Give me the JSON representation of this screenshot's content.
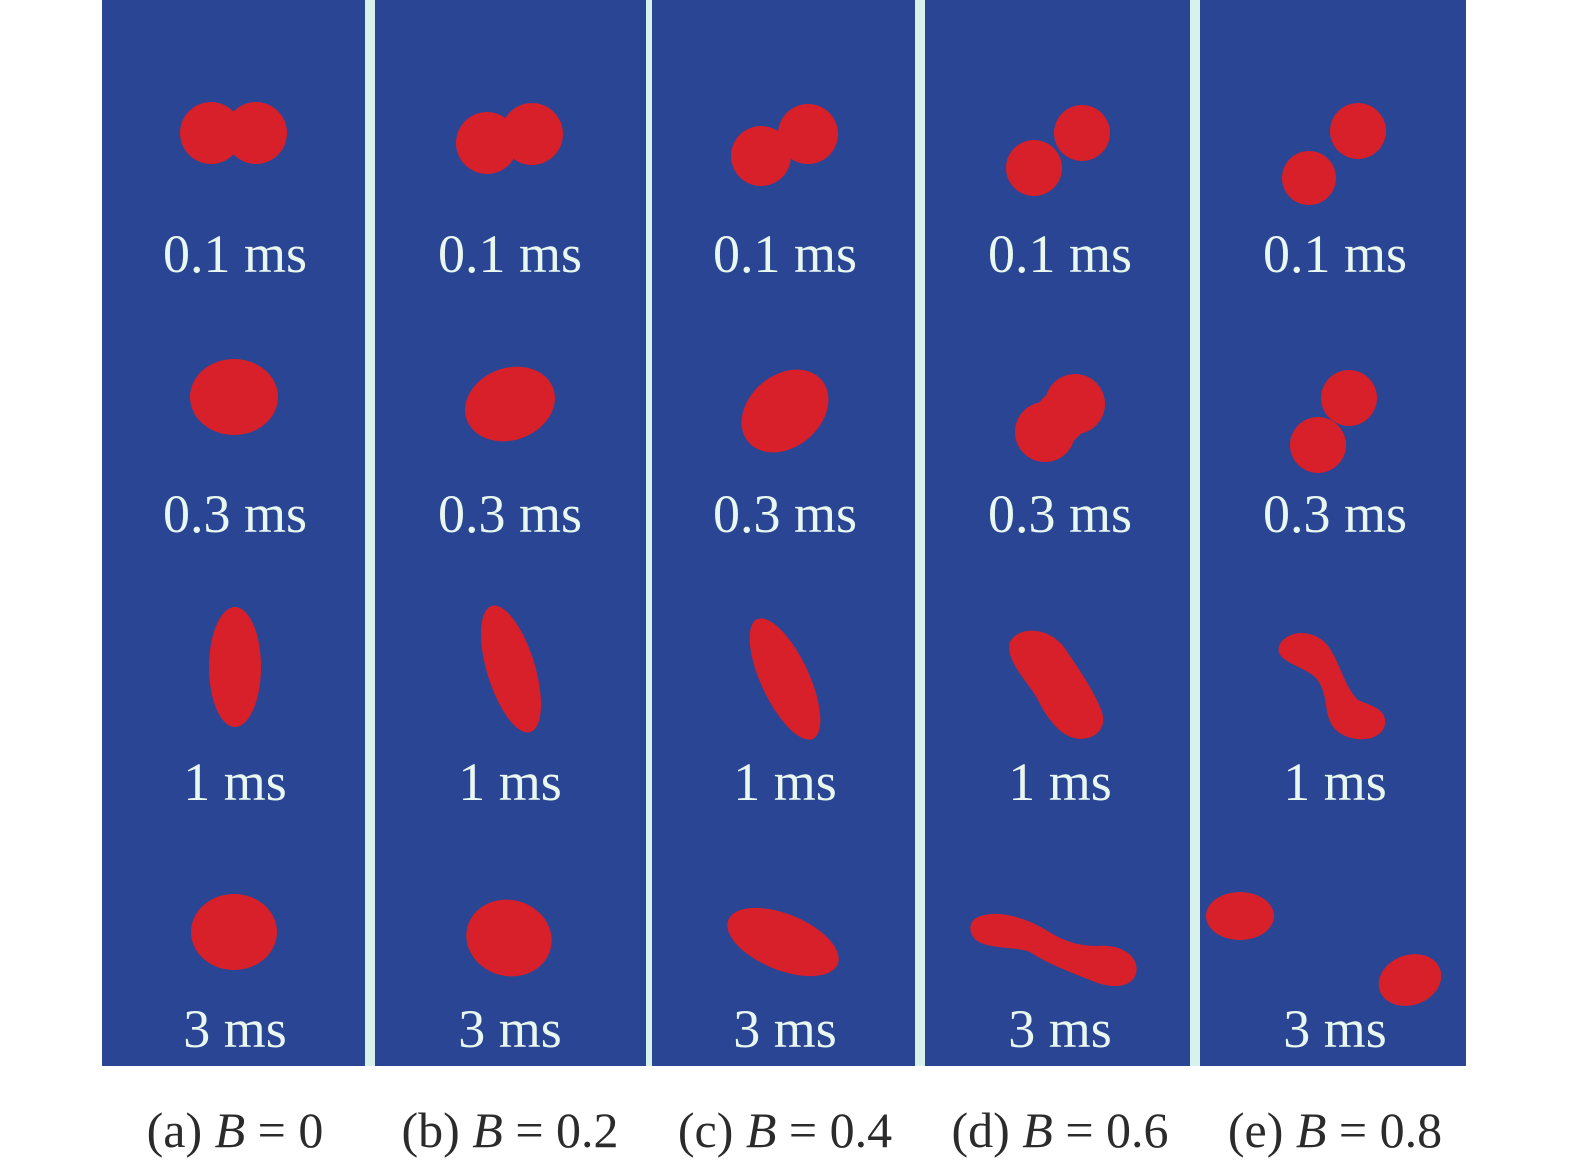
{
  "colors": {
    "background": "#2a4593",
    "droplet": "#d7202a",
    "label_text": "#e9f7f1",
    "caption_text": "#2b2b2b"
  },
  "times": [
    "0.1 ms",
    "0.3 ms",
    "1 ms",
    "3 ms"
  ],
  "panels": [
    {
      "tag": "(a)",
      "var": "B",
      "value": "= 0"
    },
    {
      "tag": "(b)",
      "var": "B",
      "value": "= 0.2"
    },
    {
      "tag": "(c)",
      "var": "B",
      "value": "= 0.4"
    },
    {
      "tag": "(d)",
      "var": "B",
      "value": "= 0.6"
    },
    {
      "tag": "(e)",
      "var": "B",
      "value": "= 0.8"
    }
  ]
}
